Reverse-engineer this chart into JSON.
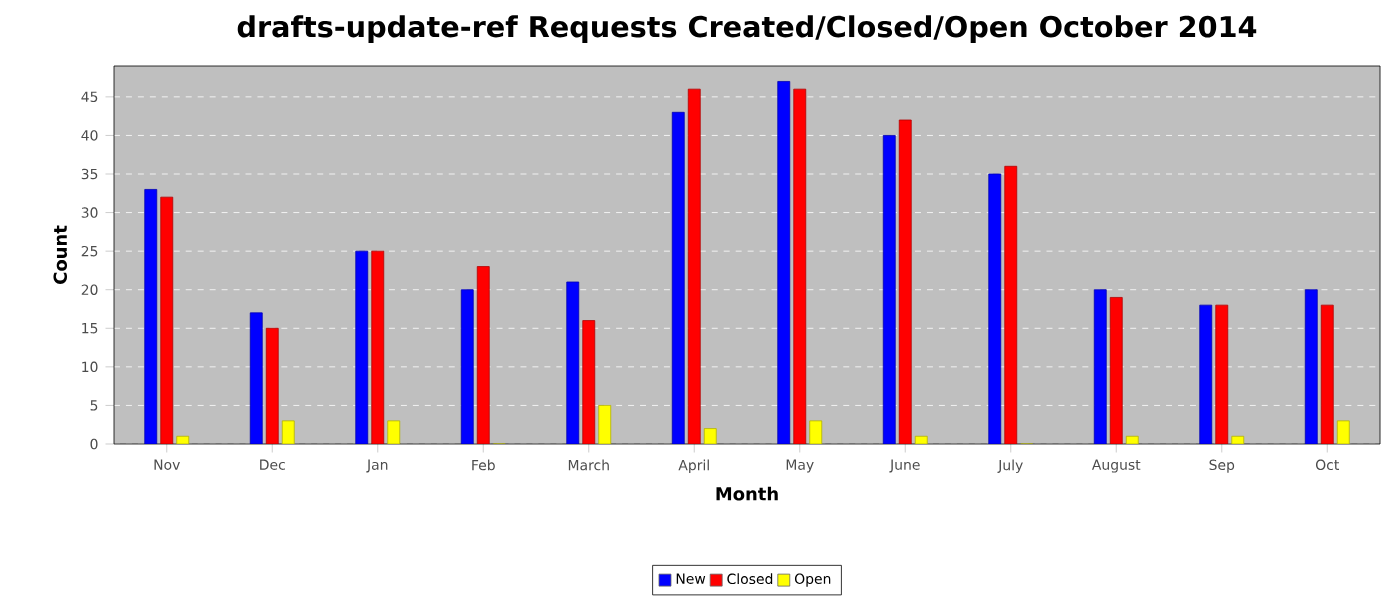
{
  "chart_data": {
    "type": "bar",
    "title": "drafts-update-ref Requests Created/Closed/Open October 2014",
    "xlabel": "Month",
    "ylabel": "Count",
    "categories": [
      "Nov",
      "Dec",
      "Jan",
      "Feb",
      "March",
      "April",
      "May",
      "June",
      "July",
      "August",
      "Sep",
      "Oct"
    ],
    "series": [
      {
        "name": "New",
        "color": "#0000ff",
        "values": [
          33,
          17,
          25,
          20,
          21,
          43,
          47,
          40,
          35,
          20,
          18,
          20
        ]
      },
      {
        "name": "Closed",
        "color": "#ff0000",
        "values": [
          32,
          15,
          25,
          23,
          16,
          46,
          46,
          42,
          36,
          19,
          18,
          18
        ]
      },
      {
        "name": "Open",
        "color": "#ffff00",
        "values": [
          1,
          3,
          3,
          0,
          5,
          2,
          3,
          1,
          0,
          1,
          1,
          3
        ]
      }
    ],
    "ylim": [
      0,
      49
    ],
    "yticks": [
      0,
      5,
      10,
      15,
      20,
      25,
      30,
      35,
      40,
      45
    ],
    "grid": "y",
    "legend": "bottom"
  }
}
